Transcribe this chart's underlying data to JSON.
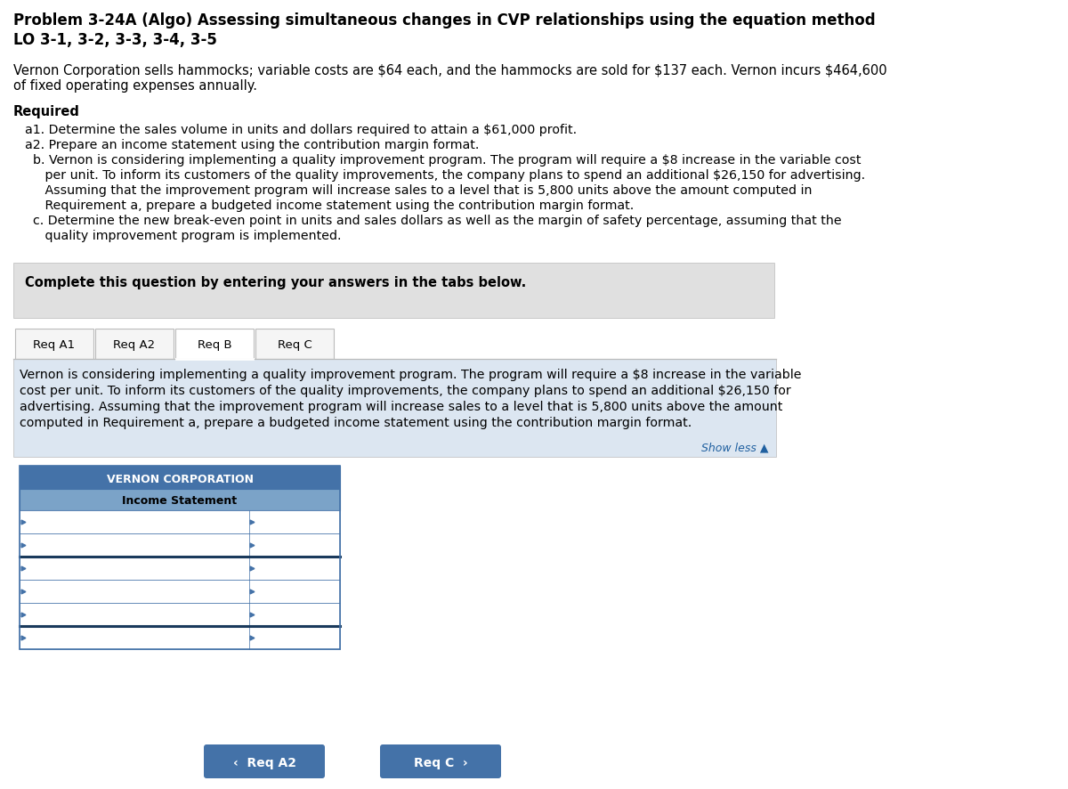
{
  "title_line1": "Problem 3-24A (Algo) Assessing simultaneous changes in CVP relationships using the equation method",
  "title_line2": "LO 3-1, 3-2, 3-3, 3-4, 3-5",
  "body_text_1": "Vernon Corporation sells hammocks; variable costs are $64 each, and the hammocks are sold for $137 each. Vernon incurs $464,600",
  "body_text_2": "of fixed operating expenses annually.",
  "required_label": "Required",
  "req_a1": "a1. Determine the sales volume in units and dollars required to attain a $61,000 profit.",
  "req_a2": "a2. Prepare an income statement using the contribution margin format.",
  "req_b_line1": "  b. Vernon is considering implementing a quality improvement program. The program will require a $8 increase in the variable cost",
  "req_b_line2": "     per unit. To inform its customers of the quality improvements, the company plans to spend an additional $26,150 for advertising.",
  "req_b_line3": "     Assuming that the improvement program will increase sales to a level that is 5,800 units above the amount computed in",
  "req_b_line4": "     Requirement a, prepare a budgeted income statement using the contribution margin format.",
  "req_c_line1": "  c. Determine the new break-even point in units and sales dollars as well as the margin of safety percentage, assuming that the",
  "req_c_line2": "     quality improvement program is implemented.",
  "complete_text": "Complete this question by entering your answers in the tabs below.",
  "tabs": [
    "Req A1",
    "Req A2",
    "Req B",
    "Req C"
  ],
  "active_tab_index": 2,
  "tab_content_line1": "Vernon is considering implementing a quality improvement program. The program will require a $8 increase in the variable",
  "tab_content_line2": "cost per unit. To inform its customers of the quality improvements, the company plans to spend an additional $26,150 for",
  "tab_content_line3": "advertising. Assuming that the improvement program will increase sales to a level that is 5,800 units above the amount",
  "tab_content_line4": "computed in Requirement a, prepare a budgeted income statement using the contribution margin format.",
  "show_less_text": "Show less ▲",
  "table_header1": "VERNON CORPORATION",
  "table_header2": "Income Statement",
  "table_rows": 6,
  "nav_btn_left": "‹  Req A2",
  "nav_btn_right": "Req C  ›",
  "bg_color": "#ffffff",
  "gray_box_color": "#e0e0e0",
  "blue_box_color": "#dce6f1",
  "tab_header_color": "#4472a8",
  "btn_color": "#4472a8",
  "active_tab_color": "#ffffff",
  "inactive_tab_color": "#f5f5f5",
  "show_less_color": "#2060a0",
  "border_color": "#4472a8",
  "tab_border_color": "#bbbbbb"
}
